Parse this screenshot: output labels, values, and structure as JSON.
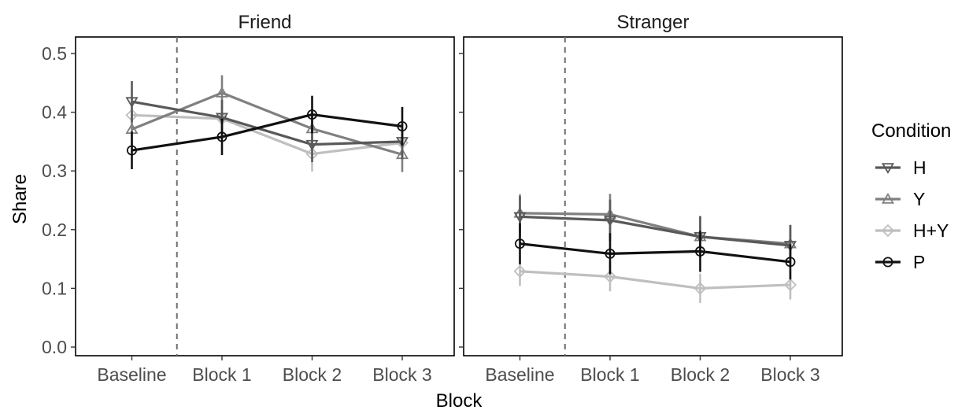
{
  "chart_data": {
    "type": "line",
    "xlabel": "Block",
    "ylabel": "Share",
    "ylim": [
      0,
      0.52
    ],
    "yticks": [
      "0.0",
      "0.1",
      "0.2",
      "0.3",
      "0.4",
      "0.5"
    ],
    "categories": [
      "Baseline",
      "Block 1",
      "Block 2",
      "Block 3"
    ],
    "reference_line": "dashed vertical line between Baseline and Block 1",
    "legend": {
      "title": "Condition",
      "position": "right"
    },
    "grid": false,
    "series_styles": [
      {
        "name": "H",
        "color": "#595959",
        "marker": "triangle-down"
      },
      {
        "name": "Y",
        "color": "#808080",
        "marker": "triangle-up"
      },
      {
        "name": "H+Y",
        "color": "#bfbfbf",
        "marker": "diamond"
      },
      {
        "name": "P",
        "color": "#111111",
        "marker": "circle"
      }
    ],
    "panels": [
      {
        "title": "Friend",
        "series": [
          {
            "name": "H",
            "values": [
              0.418,
              0.391,
              0.345,
              0.35
            ],
            "errors": [
              0.035,
              0.03,
              0.03,
              0.03
            ]
          },
          {
            "name": "Y",
            "values": [
              0.371,
              0.433,
              0.372,
              0.328
            ],
            "errors": [
              0.03,
              0.03,
              0.03,
              0.03
            ]
          },
          {
            "name": "H+Y",
            "values": [
              0.395,
              0.389,
              0.329,
              0.348
            ],
            "errors": [
              0.03,
              0.03,
              0.03,
              0.03
            ]
          },
          {
            "name": "P",
            "values": [
              0.335,
              0.358,
              0.396,
              0.376
            ],
            "errors": [
              0.032,
              0.031,
              0.032,
              0.033
            ]
          }
        ]
      },
      {
        "title": "Stranger",
        "series": [
          {
            "name": "H",
            "values": [
              0.222,
              0.216,
              0.188,
              0.173
            ],
            "errors": [
              0.035,
              0.035,
              0.035,
              0.035
            ]
          },
          {
            "name": "Y",
            "values": [
              0.228,
              0.226,
              0.188,
              0.176
            ],
            "errors": [
              0.032,
              0.035,
              0.035,
              0.032
            ]
          },
          {
            "name": "H+Y",
            "values": [
              0.129,
              0.12,
              0.1,
              0.106
            ],
            "errors": [
              0.025,
              0.025,
              0.025,
              0.025
            ]
          },
          {
            "name": "P",
            "values": [
              0.176,
              0.159,
              0.163,
              0.145
            ],
            "errors": [
              0.035,
              0.035,
              0.035,
              0.03
            ]
          }
        ]
      }
    ]
  }
}
